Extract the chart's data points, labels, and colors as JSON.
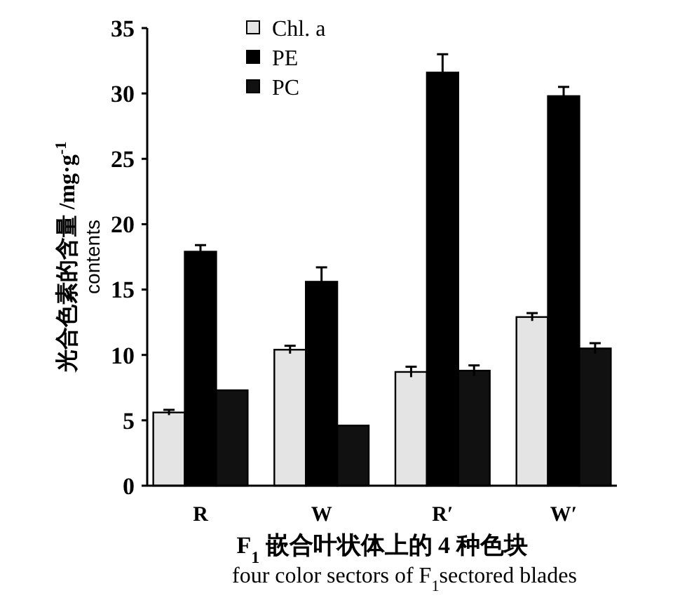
{
  "chart_data": {
    "type": "bar",
    "xlabel": "F$_{1}$ 嵌合叶状体上的 4 种色块\nfour color sectors of F$_{1}$sectored blades",
    "ylabel": "光合色素的含量 /mg·g$^{-1}$\ncontents",
    "categories": [
      "R",
      "W",
      "R′",
      "W′"
    ],
    "series": [
      {
        "name": "Chl. a",
        "color": "#e4e4e4",
        "values": [
          5.6,
          10.4,
          8.7,
          12.9
        ],
        "errors": [
          0.2,
          0.3,
          0.4,
          0.3
        ]
      },
      {
        "name": "PE",
        "color": "#000000",
        "values": [
          17.9,
          15.6,
          31.6,
          29.8
        ],
        "errors": [
          0.5,
          1.1,
          1.4,
          0.7
        ]
      },
      {
        "name": "PC",
        "color": "#111111",
        "values": [
          7.3,
          4.6,
          8.8,
          10.5
        ],
        "errors": [
          null,
          null,
          0.4,
          0.4
        ]
      }
    ],
    "ylim": [
      0,
      35
    ],
    "yticks": [
      0,
      5,
      10,
      15,
      20,
      25,
      30,
      35
    ],
    "legend": "top left",
    "grid": false
  }
}
